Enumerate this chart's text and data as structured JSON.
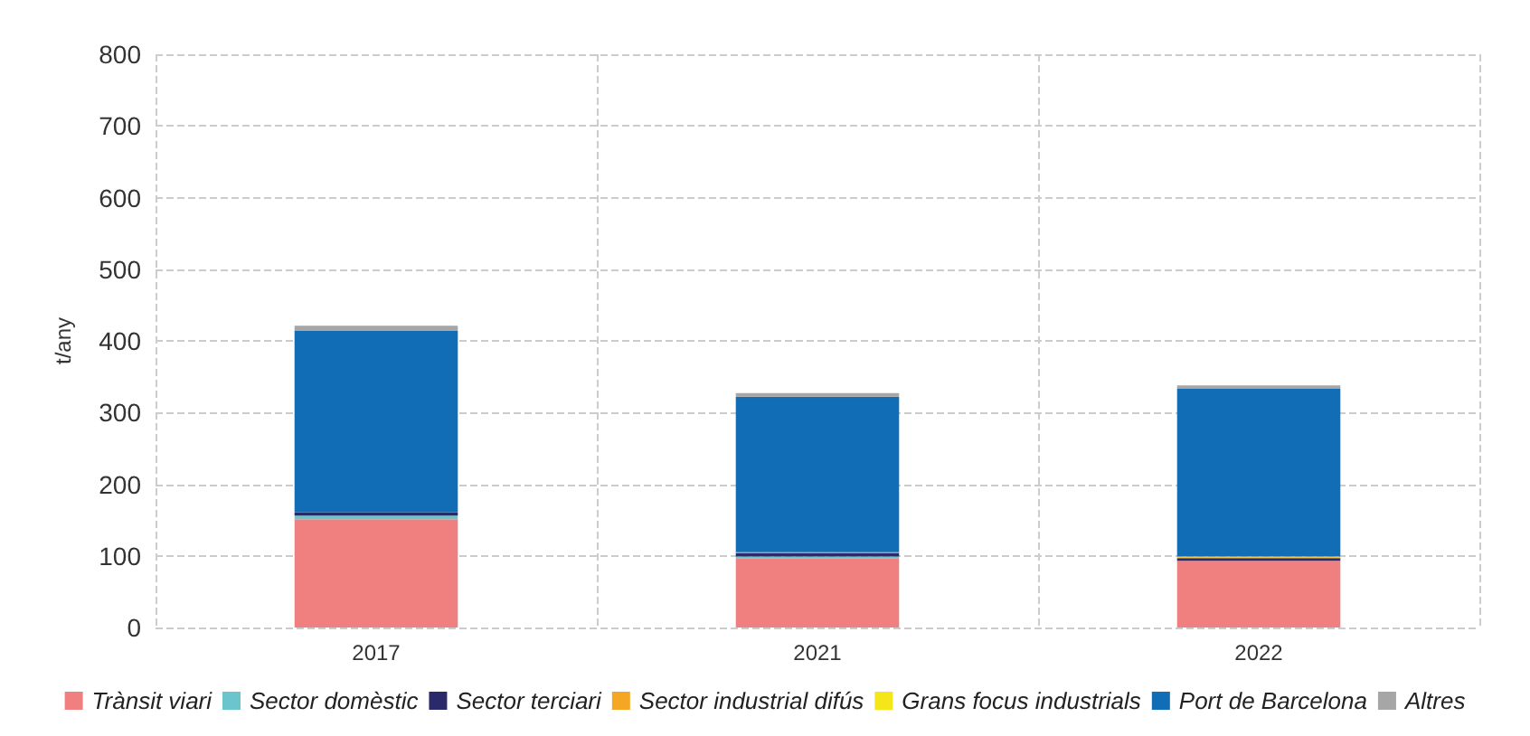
{
  "chart_data": {
    "type": "bar",
    "stacked": true,
    "ylabel": "t/any",
    "categories": [
      "2017",
      "2021",
      "2022"
    ],
    "series": [
      {
        "name": "Trànsit viari",
        "color": "#f08080",
        "values": [
          151,
          97,
          93
        ]
      },
      {
        "name": "Sector domèstic",
        "color": "#6cc5cc",
        "values": [
          5,
          2,
          null
        ]
      },
      {
        "name": "Sector terciari",
        "color": "#2a2a6a",
        "values": [
          5,
          5,
          4
        ]
      },
      {
        "name": "Sector industrial difús",
        "color": "#f5a623",
        "values": [
          null,
          1,
          1
        ]
      },
      {
        "name": "Grans focus industrials",
        "color": "#f5e61a",
        "values": [
          null,
          null,
          1
        ]
      },
      {
        "name": "Port de Barcelona",
        "color": "#116db5",
        "values": [
          253,
          217,
          234
        ]
      },
      {
        "name": "Altres",
        "color": "#a6a6a6",
        "values": [
          7,
          5,
          5
        ]
      }
    ],
    "ylim": [
      0,
      800
    ],
    "yticks": [
      0,
      100,
      200,
      300,
      400,
      500,
      600,
      700,
      800
    ],
    "grid": true,
    "legend": "bottom"
  }
}
